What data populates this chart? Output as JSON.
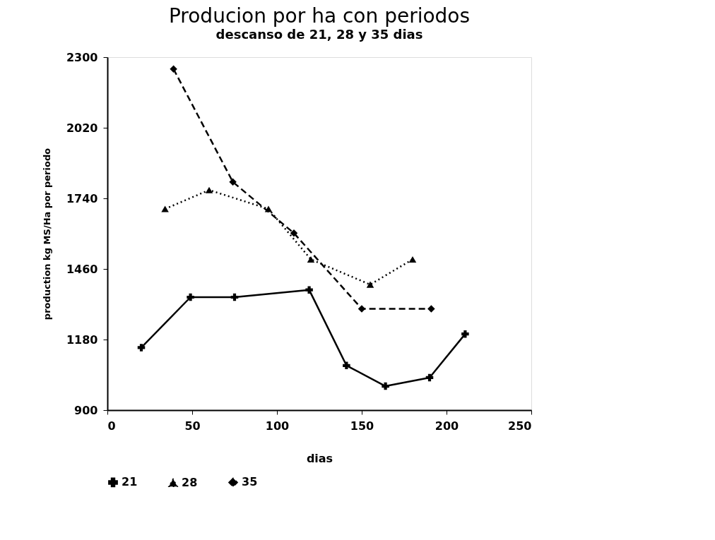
{
  "chart_data": {
    "type": "line",
    "title": "Producion por ha con periodos",
    "subtitle": "descanso de 21, 28 y 35 dias",
    "xlabel": "dias",
    "ylabel": "production kg MS/Ha por periodo",
    "xlim": [
      0,
      250
    ],
    "xticks": [
      0,
      50,
      100,
      150,
      200,
      250
    ],
    "ylim": [
      900,
      2300
    ],
    "yticks": [
      900,
      1180,
      1460,
      1740,
      2020,
      2300
    ],
    "grid": false,
    "legend": "bottom",
    "series": [
      {
        "name": "21",
        "color": "#000000",
        "marker": "cross",
        "line_style": "solid",
        "x": [
          20,
          49,
          75,
          119,
          141,
          164,
          190,
          211
        ],
        "values": [
          1148,
          1348,
          1348,
          1377,
          1077,
          995,
          1029,
          1202
        ]
      },
      {
        "name": "28",
        "color": "#000000",
        "marker": "triangle",
        "line_style": "dotted",
        "x": [
          34,
          60,
          95,
          120,
          155,
          180
        ],
        "values": [
          1698,
          1773,
          1698,
          1498,
          1398,
          1498
        ]
      },
      {
        "name": "35",
        "color": "#000000",
        "marker": "diamond",
        "line_style": "dashed",
        "x": [
          39,
          74,
          110,
          150,
          191
        ],
        "values": [
          2253,
          1805,
          1602,
          1302,
          1302
        ]
      }
    ]
  }
}
